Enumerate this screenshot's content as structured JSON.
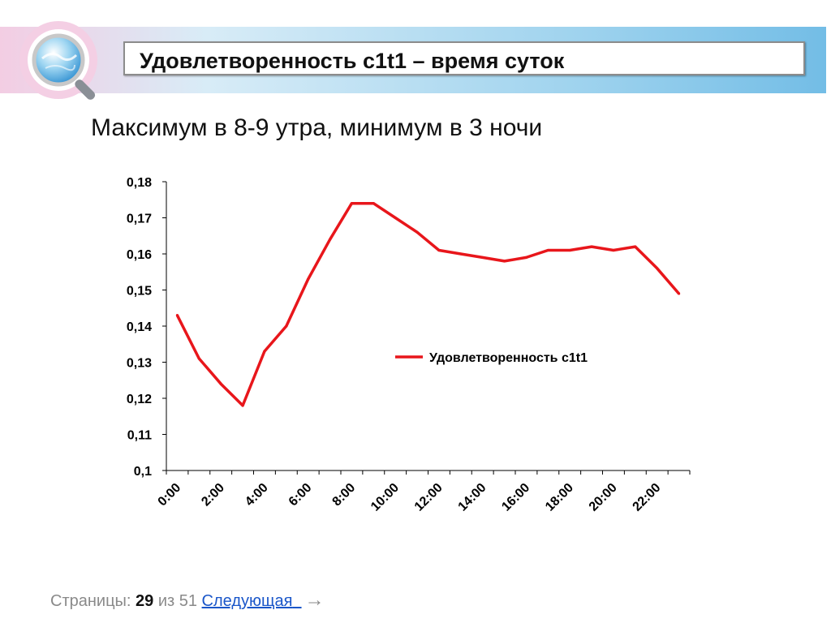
{
  "slide": {
    "title": "Удовлетворенность c1t1 – время суток",
    "subtitle": "Максимум в 8-9 утра, минимум в 3 ночи"
  },
  "chart_data": {
    "type": "line",
    "title": "",
    "xlabel": "",
    "ylabel": "",
    "x_tick_labels": [
      "0:00",
      "2:00",
      "4:00",
      "6:00",
      "8:00",
      "10:00",
      "12:00",
      "14:00",
      "16:00",
      "18:00",
      "20:00",
      "22:00"
    ],
    "y_tick_labels": [
      "0,1",
      "0,11",
      "0,12",
      "0,13",
      "0,14",
      "0,15",
      "0,16",
      "0,17",
      "0,18"
    ],
    "ylim": [
      0.1,
      0.18
    ],
    "x": [
      0,
      1,
      2,
      3,
      4,
      5,
      6,
      7,
      8,
      9,
      10,
      11,
      12,
      13,
      14,
      15,
      16,
      17,
      18,
      19,
      20,
      21,
      22,
      23
    ],
    "series": [
      {
        "name": "Удовлетворенность c1t1",
        "color": "#e8161b",
        "values": [
          0.143,
          0.131,
          0.124,
          0.118,
          0.133,
          0.14,
          0.153,
          0.164,
          0.174,
          0.174,
          0.17,
          0.166,
          0.161,
          0.16,
          0.159,
          0.158,
          0.159,
          0.161,
          0.161,
          0.162,
          0.161,
          0.162,
          0.156,
          0.149
        ]
      }
    ],
    "legend_position": "right",
    "grid": false
  },
  "footer": {
    "pages_label": "Страницы:",
    "current_page": "29",
    "of_label": "из 51",
    "next_label": "Следующая",
    "arrow": "→"
  },
  "icons": {
    "logo": "magnifier-globe-icon"
  }
}
